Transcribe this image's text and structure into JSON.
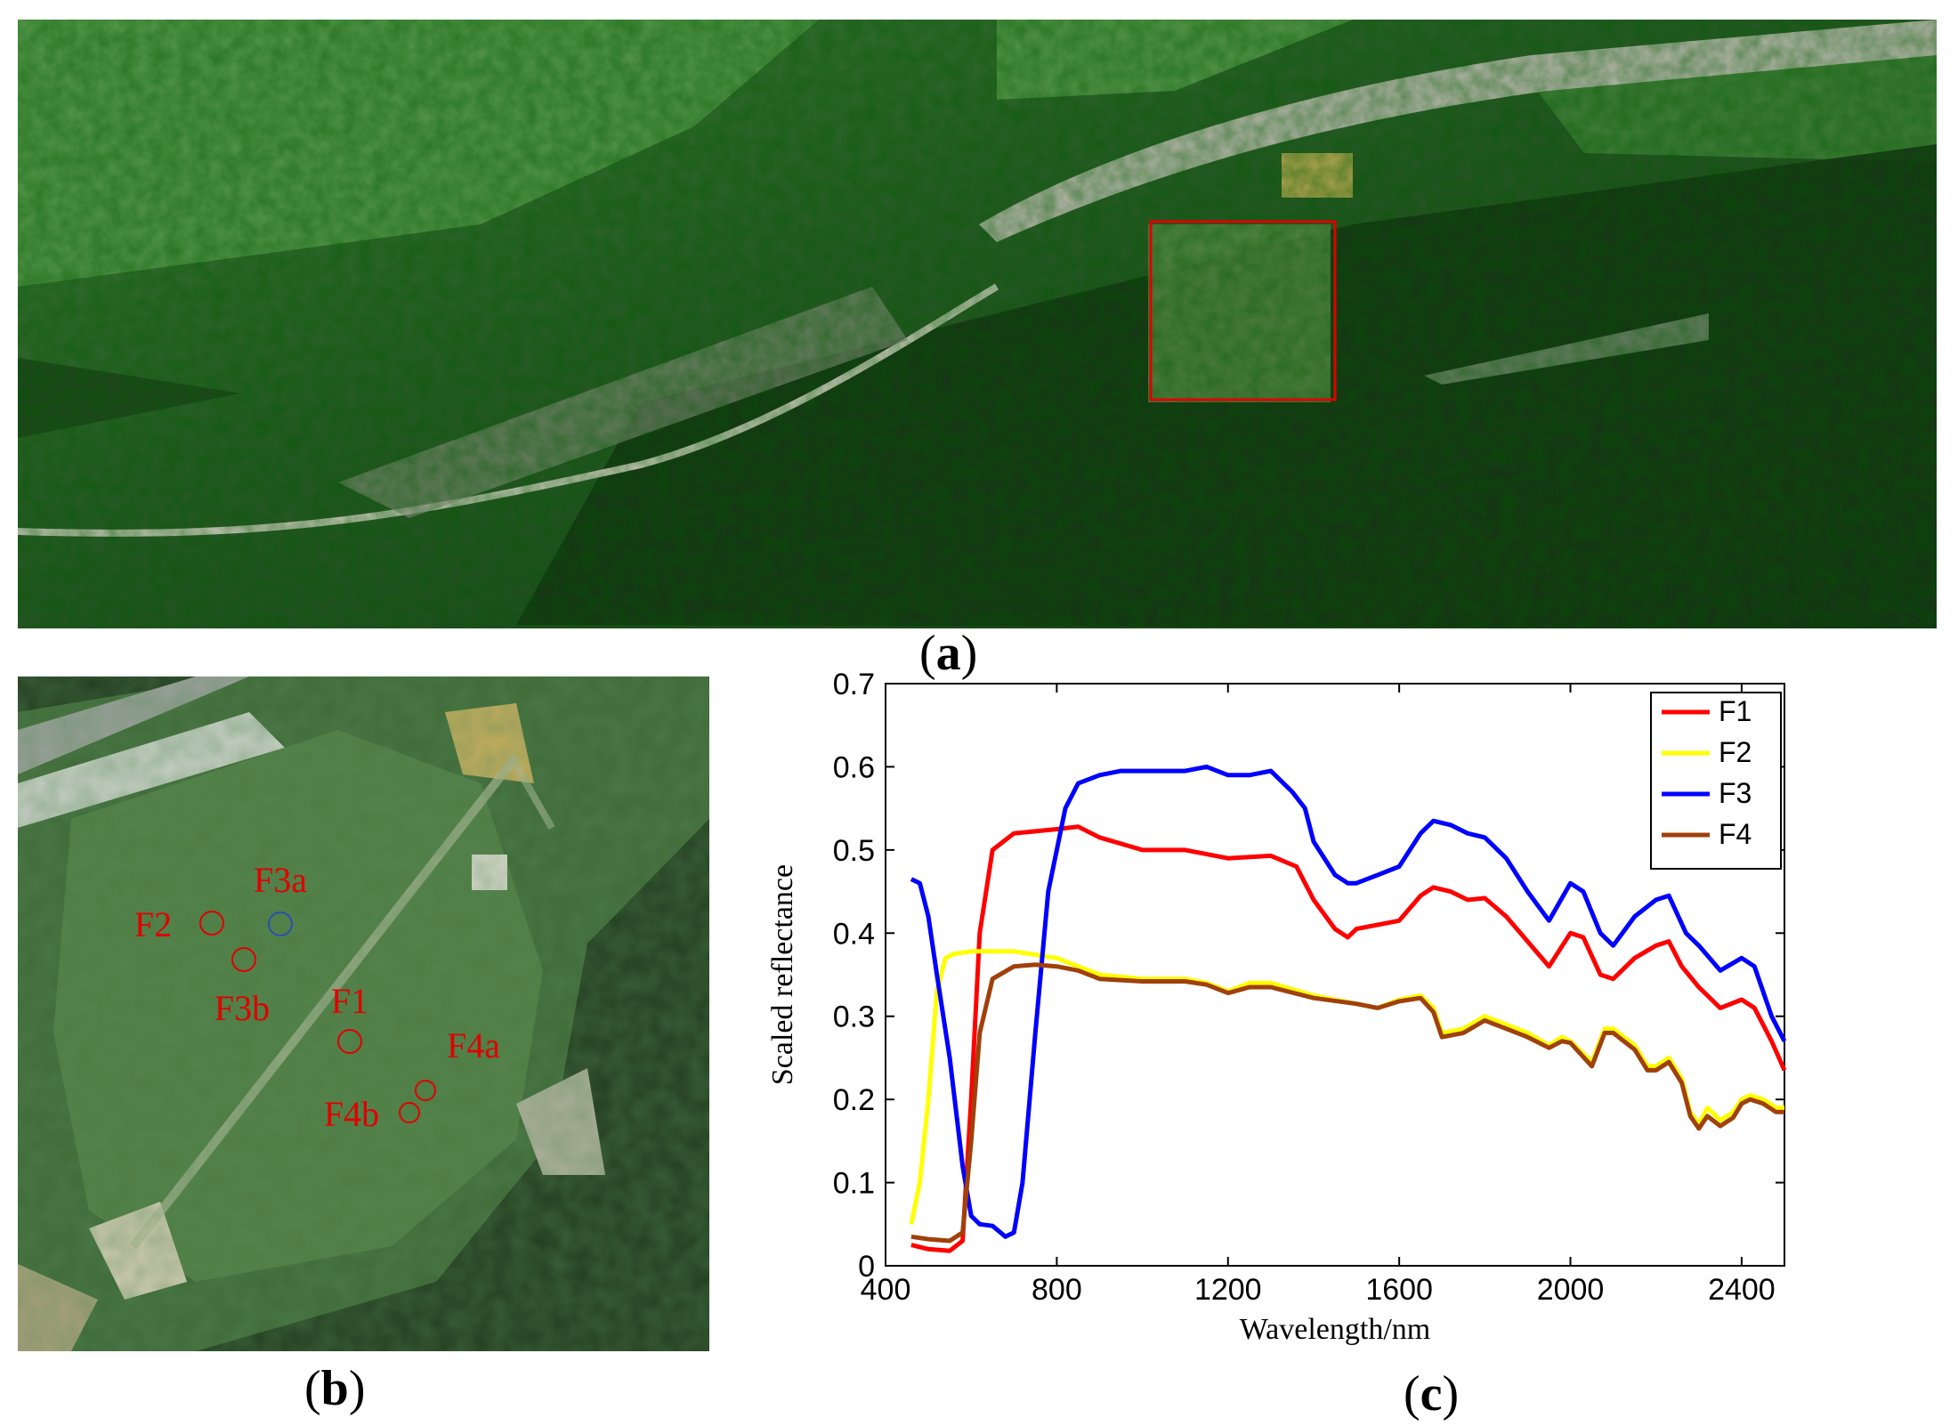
{
  "captions": {
    "a": "a",
    "b": "b",
    "c": "c"
  },
  "panel_b_markers": [
    {
      "label": "F3a",
      "color": "#2a4fb0"
    },
    {
      "label": "F2",
      "color": "#e00000"
    },
    {
      "label": "F3b",
      "color": "#e00000"
    },
    {
      "label": "F1",
      "color": "#e00000"
    },
    {
      "label": "F4a",
      "color": "#e00000"
    },
    {
      "label": "F4b",
      "color": "#e00000"
    }
  ],
  "chart_data": {
    "type": "line",
    "xlabel": "Wavelength/nm",
    "ylabel": "Scaled reflectance",
    "xlim": [
      400,
      2500
    ],
    "ylim": [
      0,
      0.7
    ],
    "xticks": [
      400,
      800,
      1200,
      1600,
      2000,
      2400
    ],
    "yticks": [
      0,
      0.1,
      0.2,
      0.3,
      0.4,
      0.5,
      0.6,
      0.7
    ],
    "ytick_labels": [
      "0",
      "0.1",
      "0.2",
      "0.3",
      "0.4",
      "0.5",
      "0.6",
      "0.7"
    ],
    "legend_position": "top-right",
    "grid": false,
    "series": [
      {
        "name": "F1",
        "color": "#ff0000",
        "points": [
          [
            460,
            0.025
          ],
          [
            500,
            0.02
          ],
          [
            550,
            0.018
          ],
          [
            580,
            0.03
          ],
          [
            600,
            0.2
          ],
          [
            620,
            0.4
          ],
          [
            650,
            0.5
          ],
          [
            700,
            0.52
          ],
          [
            800,
            0.525
          ],
          [
            850,
            0.528
          ],
          [
            900,
            0.515
          ],
          [
            1000,
            0.5
          ],
          [
            1100,
            0.5
          ],
          [
            1200,
            0.49
          ],
          [
            1300,
            0.493
          ],
          [
            1360,
            0.48
          ],
          [
            1400,
            0.44
          ],
          [
            1450,
            0.405
          ],
          [
            1480,
            0.395
          ],
          [
            1500,
            0.405
          ],
          [
            1550,
            0.41
          ],
          [
            1600,
            0.415
          ],
          [
            1650,
            0.445
          ],
          [
            1680,
            0.455
          ],
          [
            1720,
            0.45
          ],
          [
            1760,
            0.44
          ],
          [
            1800,
            0.442
          ],
          [
            1850,
            0.42
          ],
          [
            1900,
            0.39
          ],
          [
            1950,
            0.36
          ],
          [
            2000,
            0.4
          ],
          [
            2030,
            0.395
          ],
          [
            2070,
            0.35
          ],
          [
            2100,
            0.345
          ],
          [
            2150,
            0.37
          ],
          [
            2200,
            0.385
          ],
          [
            2230,
            0.39
          ],
          [
            2260,
            0.36
          ],
          [
            2300,
            0.335
          ],
          [
            2350,
            0.31
          ],
          [
            2400,
            0.32
          ],
          [
            2430,
            0.31
          ],
          [
            2470,
            0.27
          ],
          [
            2500,
            0.235
          ]
        ]
      },
      {
        "name": "F2",
        "color": "#ffff00",
        "points": [
          [
            460,
            0.05
          ],
          [
            480,
            0.1
          ],
          [
            500,
            0.2
          ],
          [
            520,
            0.33
          ],
          [
            540,
            0.37
          ],
          [
            560,
            0.375
          ],
          [
            600,
            0.378
          ],
          [
            700,
            0.378
          ],
          [
            800,
            0.37
          ],
          [
            850,
            0.36
          ],
          [
            900,
            0.35
          ],
          [
            1000,
            0.345
          ],
          [
            1100,
            0.345
          ],
          [
            1150,
            0.34
          ],
          [
            1200,
            0.33
          ],
          [
            1250,
            0.34
          ],
          [
            1300,
            0.34
          ],
          [
            1400,
            0.325
          ],
          [
            1500,
            0.315
          ],
          [
            1550,
            0.31
          ],
          [
            1600,
            0.32
          ],
          [
            1650,
            0.325
          ],
          [
            1680,
            0.31
          ],
          [
            1700,
            0.28
          ],
          [
            1750,
            0.285
          ],
          [
            1800,
            0.3
          ],
          [
            1850,
            0.29
          ],
          [
            1900,
            0.28
          ],
          [
            1950,
            0.265
          ],
          [
            1980,
            0.275
          ],
          [
            2000,
            0.27
          ],
          [
            2050,
            0.245
          ],
          [
            2080,
            0.285
          ],
          [
            2100,
            0.285
          ],
          [
            2150,
            0.265
          ],
          [
            2180,
            0.24
          ],
          [
            2200,
            0.24
          ],
          [
            2230,
            0.25
          ],
          [
            2260,
            0.225
          ],
          [
            2280,
            0.185
          ],
          [
            2300,
            0.17
          ],
          [
            2320,
            0.19
          ],
          [
            2350,
            0.175
          ],
          [
            2380,
            0.185
          ],
          [
            2400,
            0.2
          ],
          [
            2420,
            0.205
          ],
          [
            2450,
            0.2
          ],
          [
            2480,
            0.19
          ],
          [
            2500,
            0.19
          ]
        ]
      },
      {
        "name": "F3",
        "color": "#0000ff",
        "points": [
          [
            460,
            0.465
          ],
          [
            480,
            0.46
          ],
          [
            500,
            0.42
          ],
          [
            520,
            0.35
          ],
          [
            550,
            0.25
          ],
          [
            580,
            0.12
          ],
          [
            600,
            0.06
          ],
          [
            620,
            0.05
          ],
          [
            650,
            0.048
          ],
          [
            680,
            0.035
          ],
          [
            700,
            0.04
          ],
          [
            720,
            0.1
          ],
          [
            750,
            0.28
          ],
          [
            780,
            0.45
          ],
          [
            820,
            0.55
          ],
          [
            850,
            0.58
          ],
          [
            900,
            0.59
          ],
          [
            950,
            0.595
          ],
          [
            1000,
            0.595
          ],
          [
            1050,
            0.595
          ],
          [
            1100,
            0.595
          ],
          [
            1150,
            0.6
          ],
          [
            1200,
            0.59
          ],
          [
            1250,
            0.59
          ],
          [
            1300,
            0.595
          ],
          [
            1350,
            0.57
          ],
          [
            1380,
            0.55
          ],
          [
            1400,
            0.51
          ],
          [
            1450,
            0.47
          ],
          [
            1480,
            0.46
          ],
          [
            1500,
            0.46
          ],
          [
            1550,
            0.47
          ],
          [
            1600,
            0.48
          ],
          [
            1650,
            0.52
          ],
          [
            1680,
            0.535
          ],
          [
            1720,
            0.53
          ],
          [
            1760,
            0.52
          ],
          [
            1800,
            0.515
          ],
          [
            1850,
            0.49
          ],
          [
            1900,
            0.45
          ],
          [
            1950,
            0.415
          ],
          [
            2000,
            0.46
          ],
          [
            2030,
            0.45
          ],
          [
            2070,
            0.4
          ],
          [
            2100,
            0.385
          ],
          [
            2150,
            0.42
          ],
          [
            2200,
            0.44
          ],
          [
            2230,
            0.445
          ],
          [
            2270,
            0.4
          ],
          [
            2300,
            0.385
          ],
          [
            2350,
            0.355
          ],
          [
            2400,
            0.37
          ],
          [
            2430,
            0.36
          ],
          [
            2470,
            0.3
          ],
          [
            2500,
            0.27
          ]
        ]
      },
      {
        "name": "F4",
        "color": "#a0400a",
        "points": [
          [
            460,
            0.035
          ],
          [
            500,
            0.032
          ],
          [
            550,
            0.03
          ],
          [
            580,
            0.04
          ],
          [
            600,
            0.15
          ],
          [
            620,
            0.28
          ],
          [
            650,
            0.345
          ],
          [
            700,
            0.36
          ],
          [
            750,
            0.362
          ],
          [
            800,
            0.36
          ],
          [
            850,
            0.355
          ],
          [
            900,
            0.345
          ],
          [
            1000,
            0.342
          ],
          [
            1100,
            0.342
          ],
          [
            1150,
            0.338
          ],
          [
            1200,
            0.328
          ],
          [
            1250,
            0.335
          ],
          [
            1300,
            0.335
          ],
          [
            1400,
            0.322
          ],
          [
            1500,
            0.315
          ],
          [
            1550,
            0.31
          ],
          [
            1600,
            0.318
          ],
          [
            1650,
            0.322
          ],
          [
            1680,
            0.305
          ],
          [
            1700,
            0.275
          ],
          [
            1750,
            0.28
          ],
          [
            1800,
            0.295
          ],
          [
            1850,
            0.285
          ],
          [
            1900,
            0.275
          ],
          [
            1950,
            0.262
          ],
          [
            1980,
            0.27
          ],
          [
            2000,
            0.268
          ],
          [
            2050,
            0.24
          ],
          [
            2080,
            0.28
          ],
          [
            2100,
            0.28
          ],
          [
            2150,
            0.26
          ],
          [
            2180,
            0.235
          ],
          [
            2200,
            0.235
          ],
          [
            2230,
            0.245
          ],
          [
            2260,
            0.22
          ],
          [
            2280,
            0.18
          ],
          [
            2300,
            0.165
          ],
          [
            2320,
            0.18
          ],
          [
            2350,
            0.168
          ],
          [
            2380,
            0.178
          ],
          [
            2400,
            0.195
          ],
          [
            2420,
            0.2
          ],
          [
            2450,
            0.195
          ],
          [
            2480,
            0.185
          ],
          [
            2500,
            0.185
          ]
        ]
      }
    ]
  }
}
